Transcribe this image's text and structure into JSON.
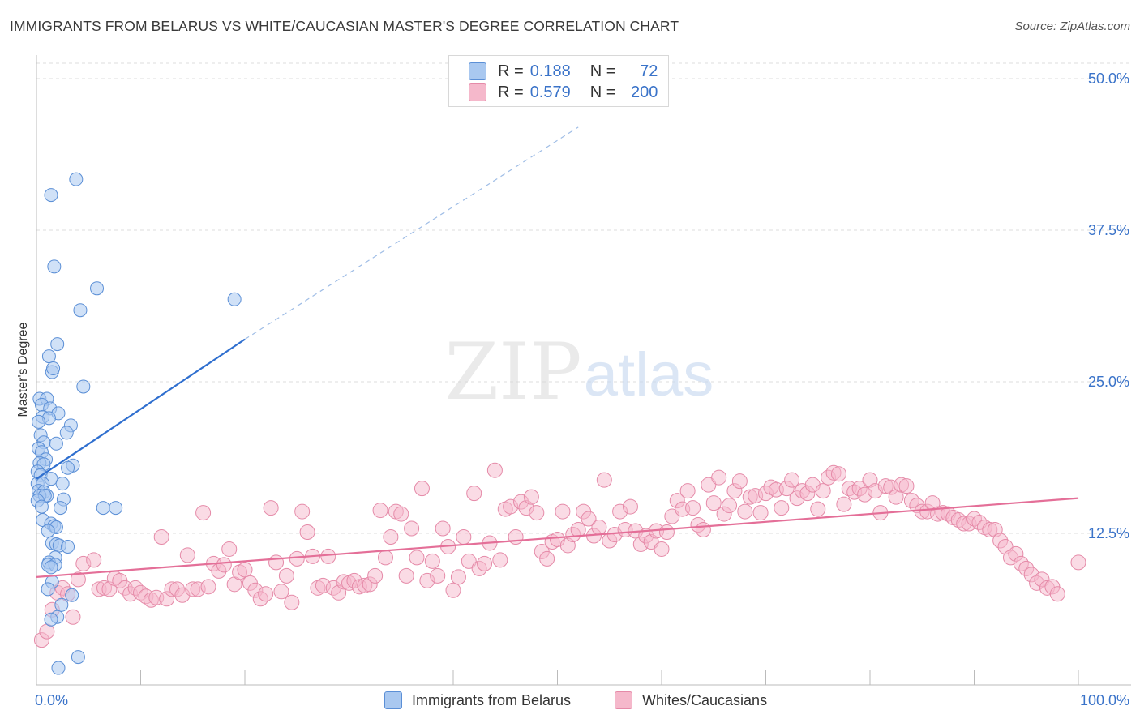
{
  "title": "IMMIGRANTS FROM BELARUS VS WHITE/CAUCASIAN MASTER'S DEGREE CORRELATION CHART",
  "source": "Source: ZipAtlas.com",
  "watermark": {
    "zip": "ZIP",
    "atlas": "atlas"
  },
  "colors": {
    "blue_fill": "#a9c8f0",
    "blue_stroke": "#5b8fd6",
    "blue_line": "#2f6fcf",
    "pink_fill": "#f5b8cb",
    "pink_stroke": "#e58aa8",
    "pink_line": "#e46f98",
    "tick_label": "#3a73c9",
    "grid": "#dcdcdc"
  },
  "legend": {
    "rows": [
      {
        "r_label": "R =",
        "r_value": "0.188",
        "n_label": "N =",
        "n_value": "72",
        "color": "#a9c8f0"
      },
      {
        "r_label": "R =",
        "r_value": "0.579",
        "n_label": "N =",
        "n_value": "200",
        "color": "#f5b8cb"
      }
    ]
  },
  "bottom_legend": [
    {
      "label": "Immigrants from Belarus",
      "color": "#a9c8f0"
    },
    {
      "label": "Whites/Caucasians",
      "color": "#f5b8cb"
    }
  ],
  "chart_data": {
    "type": "scatter",
    "ylabel": "Master's Degree",
    "xlim": [
      0,
      100
    ],
    "ylim": [
      0,
      50
    ],
    "x_tick_labels": [
      "0.0%",
      "100.0%"
    ],
    "y_ticks": [
      12.5,
      25.0,
      37.5,
      50.0
    ],
    "y_tick_labels": [
      "12.5%",
      "25.0%",
      "37.5%",
      "50.0%"
    ],
    "grid": true,
    "legend_placement": "top-center",
    "series": [
      {
        "name": "Immigrants from Belarus",
        "trend": {
          "x0": 0,
          "y0": 17.0,
          "x1": 20,
          "y1": 28.5,
          "dash_to_x": 52,
          "dash_to_y": 46
        },
        "points": [
          [
            1.4,
            40.4
          ],
          [
            3.8,
            41.7
          ],
          [
            1.7,
            34.5
          ],
          [
            5.8,
            32.7
          ],
          [
            19,
            31.8
          ],
          [
            4.2,
            30.9
          ],
          [
            2.0,
            28.1
          ],
          [
            1.2,
            27.1
          ],
          [
            1.5,
            25.8
          ],
          [
            1.6,
            26.1
          ],
          [
            4.5,
            24.6
          ],
          [
            0.3,
            23.6
          ],
          [
            1.0,
            23.6
          ],
          [
            0.5,
            23.1
          ],
          [
            1.3,
            22.8
          ],
          [
            2.1,
            22.4
          ],
          [
            0.6,
            22.1
          ],
          [
            1.2,
            22.0
          ],
          [
            3.3,
            21.4
          ],
          [
            0.2,
            21.7
          ],
          [
            2.9,
            20.8
          ],
          [
            0.4,
            20.6
          ],
          [
            0.7,
            20.0
          ],
          [
            1.9,
            19.9
          ],
          [
            0.2,
            19.5
          ],
          [
            0.5,
            19.2
          ],
          [
            0.9,
            18.6
          ],
          [
            0.3,
            18.3
          ],
          [
            0.7,
            18.2
          ],
          [
            3.5,
            18.1
          ],
          [
            3.0,
            17.9
          ],
          [
            0.1,
            17.6
          ],
          [
            0.4,
            17.3
          ],
          [
            1.4,
            17.0
          ],
          [
            0.1,
            16.6
          ],
          [
            0.6,
            16.6
          ],
          [
            2.5,
            16.6
          ],
          [
            0.2,
            16.0
          ],
          [
            0.7,
            15.9
          ],
          [
            1.0,
            15.6
          ],
          [
            0.3,
            15.6
          ],
          [
            0.8,
            15.6
          ],
          [
            0.1,
            15.2
          ],
          [
            2.6,
            15.3
          ],
          [
            0.5,
            14.7
          ],
          [
            2.3,
            14.6
          ],
          [
            6.4,
            14.6
          ],
          [
            7.6,
            14.6
          ],
          [
            0.6,
            13.6
          ],
          [
            1.4,
            13.3
          ],
          [
            1.7,
            13.1
          ],
          [
            1.9,
            13.0
          ],
          [
            1.1,
            12.7
          ],
          [
            1.5,
            11.7
          ],
          [
            1.9,
            11.6
          ],
          [
            2.2,
            11.5
          ],
          [
            3.0,
            11.4
          ],
          [
            1.8,
            10.5
          ],
          [
            1.2,
            10.1
          ],
          [
            1.1,
            9.9
          ],
          [
            1.8,
            9.9
          ],
          [
            1.4,
            9.7
          ],
          [
            1.5,
            8.5
          ],
          [
            1.1,
            7.9
          ],
          [
            3.4,
            7.4
          ],
          [
            2.4,
            6.6
          ],
          [
            2.0,
            5.6
          ],
          [
            1.4,
            5.4
          ],
          [
            2.1,
            1.4
          ],
          [
            4.0,
            2.3
          ]
        ]
      },
      {
        "name": "Whites/Caucasians",
        "trend": {
          "x0": 0,
          "y0": 8.9,
          "x1": 100,
          "y1": 15.4
        },
        "points": [
          [
            0.5,
            3.7
          ],
          [
            1.0,
            4.4
          ],
          [
            1.5,
            6.2
          ],
          [
            2.0,
            7.6
          ],
          [
            2.5,
            8.0
          ],
          [
            3.0,
            7.5
          ],
          [
            3.5,
            5.6
          ],
          [
            4.0,
            8.7
          ],
          [
            4.5,
            10.0
          ],
          [
            5.5,
            10.3
          ],
          [
            6.0,
            7.9
          ],
          [
            6.5,
            8.0
          ],
          [
            7.0,
            7.9
          ],
          [
            7.5,
            8.8
          ],
          [
            8.0,
            8.6
          ],
          [
            8.5,
            8.0
          ],
          [
            9.0,
            7.5
          ],
          [
            9.5,
            8.0
          ],
          [
            10.0,
            7.6
          ],
          [
            10.5,
            7.3
          ],
          [
            11.0,
            7.0
          ],
          [
            11.5,
            7.2
          ],
          [
            12.0,
            12.2
          ],
          [
            12.5,
            7.1
          ],
          [
            13.0,
            7.9
          ],
          [
            13.5,
            7.9
          ],
          [
            14.0,
            7.4
          ],
          [
            14.5,
            10.7
          ],
          [
            15.0,
            7.9
          ],
          [
            15.5,
            7.9
          ],
          [
            16.0,
            14.2
          ],
          [
            16.5,
            8.1
          ],
          [
            17.0,
            10.0
          ],
          [
            17.5,
            9.4
          ],
          [
            18.0,
            9.9
          ],
          [
            18.5,
            11.2
          ],
          [
            19.0,
            8.3
          ],
          [
            19.5,
            9.3
          ],
          [
            20.0,
            9.5
          ],
          [
            20.5,
            8.4
          ],
          [
            21.0,
            7.8
          ],
          [
            21.5,
            7.1
          ],
          [
            22.0,
            7.5
          ],
          [
            22.5,
            14.6
          ],
          [
            23.0,
            10.1
          ],
          [
            23.5,
            7.7
          ],
          [
            24.0,
            9.0
          ],
          [
            24.5,
            6.8
          ],
          [
            25.0,
            10.4
          ],
          [
            25.5,
            14.3
          ],
          [
            26.0,
            12.6
          ],
          [
            26.5,
            10.6
          ],
          [
            27.0,
            8.0
          ],
          [
            27.5,
            8.2
          ],
          [
            28.0,
            10.6
          ],
          [
            28.5,
            8.0
          ],
          [
            29.0,
            7.6
          ],
          [
            29.5,
            8.5
          ],
          [
            30.0,
            8.4
          ],
          [
            30.5,
            8.6
          ],
          [
            31.0,
            8.1
          ],
          [
            31.5,
            8.2
          ],
          [
            32.0,
            8.3
          ],
          [
            32.5,
            9.0
          ],
          [
            33.0,
            14.4
          ],
          [
            33.5,
            10.5
          ],
          [
            34.0,
            12.2
          ],
          [
            34.5,
            14.3
          ],
          [
            35.0,
            14.1
          ],
          [
            35.5,
            9.0
          ],
          [
            36.0,
            12.9
          ],
          [
            36.5,
            10.5
          ],
          [
            37.0,
            16.2
          ],
          [
            37.5,
            8.6
          ],
          [
            38.0,
            10.2
          ],
          [
            38.5,
            9.0
          ],
          [
            39.0,
            12.9
          ],
          [
            39.5,
            11.4
          ],
          [
            40.0,
            7.8
          ],
          [
            40.5,
            8.9
          ],
          [
            41.0,
            12.2
          ],
          [
            41.5,
            10.2
          ],
          [
            42.0,
            15.8
          ],
          [
            42.5,
            9.6
          ],
          [
            43.0,
            10.0
          ],
          [
            43.5,
            11.7
          ],
          [
            44.0,
            17.7
          ],
          [
            44.5,
            10.3
          ],
          [
            45.0,
            14.5
          ],
          [
            45.5,
            14.7
          ],
          [
            46.0,
            12.2
          ],
          [
            46.5,
            15.1
          ],
          [
            47.0,
            14.6
          ],
          [
            47.5,
            15.5
          ],
          [
            48.0,
            14.2
          ],
          [
            48.5,
            11.0
          ],
          [
            49.0,
            10.4
          ],
          [
            49.5,
            11.8
          ],
          [
            50.0,
            12.0
          ],
          [
            50.5,
            14.3
          ],
          [
            51.0,
            11.5
          ],
          [
            51.5,
            12.4
          ],
          [
            52.0,
            12.8
          ],
          [
            52.5,
            14.3
          ],
          [
            53.0,
            13.7
          ],
          [
            53.5,
            12.3
          ],
          [
            54.0,
            13.0
          ],
          [
            54.5,
            16.9
          ],
          [
            55.0,
            11.9
          ],
          [
            55.5,
            12.4
          ],
          [
            56.0,
            14.3
          ],
          [
            56.5,
            12.8
          ],
          [
            57.0,
            14.7
          ],
          [
            57.5,
            12.7
          ],
          [
            58.0,
            11.6
          ],
          [
            58.5,
            12.3
          ],
          [
            59.0,
            11.8
          ],
          [
            59.5,
            12.7
          ],
          [
            60.0,
            11.2
          ],
          [
            60.5,
            12.6
          ],
          [
            61.0,
            13.9
          ],
          [
            61.5,
            15.2
          ],
          [
            62.0,
            14.5
          ],
          [
            62.5,
            16.0
          ],
          [
            63.0,
            14.6
          ],
          [
            63.5,
            13.2
          ],
          [
            64.0,
            12.8
          ],
          [
            64.5,
            16.5
          ],
          [
            65.0,
            15.0
          ],
          [
            65.5,
            17.1
          ],
          [
            66.0,
            14.1
          ],
          [
            66.5,
            14.8
          ],
          [
            67.0,
            16.0
          ],
          [
            67.5,
            16.8
          ],
          [
            68.0,
            14.3
          ],
          [
            68.5,
            15.5
          ],
          [
            69.0,
            15.6
          ],
          [
            69.5,
            14.2
          ],
          [
            70.0,
            15.8
          ],
          [
            70.5,
            16.3
          ],
          [
            71.0,
            16.1
          ],
          [
            71.5,
            14.6
          ],
          [
            72.0,
            16.2
          ],
          [
            72.5,
            16.9
          ],
          [
            73.0,
            15.4
          ],
          [
            73.5,
            16.0
          ],
          [
            74.0,
            15.8
          ],
          [
            74.5,
            16.5
          ],
          [
            75.0,
            14.5
          ],
          [
            75.5,
            16.0
          ],
          [
            76.0,
            17.1
          ],
          [
            76.5,
            17.5
          ],
          [
            77.0,
            17.4
          ],
          [
            77.5,
            14.9
          ],
          [
            78.0,
            16.2
          ],
          [
            78.5,
            15.9
          ],
          [
            79.0,
            16.2
          ],
          [
            79.5,
            15.7
          ],
          [
            80.0,
            16.9
          ],
          [
            80.5,
            16.0
          ],
          [
            81.0,
            14.2
          ],
          [
            81.5,
            16.4
          ],
          [
            82.0,
            16.3
          ],
          [
            82.5,
            15.5
          ],
          [
            83.0,
            16.5
          ],
          [
            83.5,
            16.4
          ],
          [
            84.0,
            15.2
          ],
          [
            84.5,
            14.8
          ],
          [
            85.0,
            14.3
          ],
          [
            85.5,
            14.3
          ],
          [
            86.0,
            15.0
          ],
          [
            86.5,
            14.1
          ],
          [
            87.0,
            14.2
          ],
          [
            87.5,
            14.1
          ],
          [
            88.0,
            13.8
          ],
          [
            88.5,
            13.6
          ],
          [
            89.0,
            13.3
          ],
          [
            89.5,
            13.3
          ],
          [
            90.0,
            13.7
          ],
          [
            90.5,
            13.4
          ],
          [
            91.0,
            13.0
          ],
          [
            91.5,
            12.8
          ],
          [
            92.0,
            12.8
          ],
          [
            92.5,
            11.9
          ],
          [
            93.0,
            11.4
          ],
          [
            93.5,
            10.5
          ],
          [
            94.0,
            10.8
          ],
          [
            94.5,
            10.0
          ],
          [
            95.0,
            9.6
          ],
          [
            95.5,
            9.1
          ],
          [
            96.0,
            8.4
          ],
          [
            96.5,
            8.7
          ],
          [
            97.0,
            8.0
          ],
          [
            97.5,
            8.1
          ],
          [
            98.0,
            7.5
          ],
          [
            100.0,
            10.1
          ]
        ]
      }
    ]
  }
}
